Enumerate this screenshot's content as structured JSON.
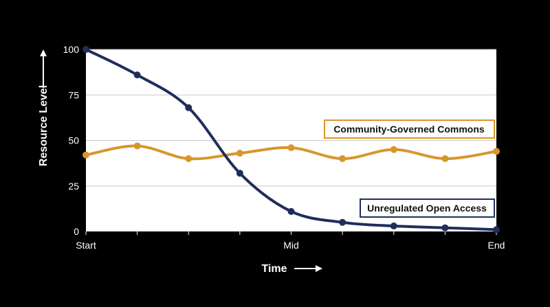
{
  "chart_data": {
    "type": "line",
    "xlabel": "Time",
    "ylabel": "Resource Level",
    "x": [
      0,
      1,
      2,
      3,
      4,
      5,
      6,
      7,
      8
    ],
    "x_tick_labels": {
      "0": "Start",
      "4": "Mid",
      "8": "End"
    },
    "yticks": [
      0,
      25,
      50,
      75,
      100
    ],
    "ylim": [
      0,
      100
    ],
    "grid": "horizontal",
    "series": [
      {
        "name": "Unregulated Open Access",
        "color": "#1f2d5c",
        "values": [
          100,
          86,
          68,
          32,
          11,
          5,
          3,
          2,
          1
        ]
      },
      {
        "name": "Community-Governed Commons",
        "color": "#d9962b",
        "values": [
          42,
          47,
          40,
          43,
          46,
          40,
          45,
          40,
          44
        ]
      }
    ]
  },
  "colors": {
    "background": "#000000",
    "plot_background": "#ffffff",
    "grid": "#c8c8c8"
  }
}
